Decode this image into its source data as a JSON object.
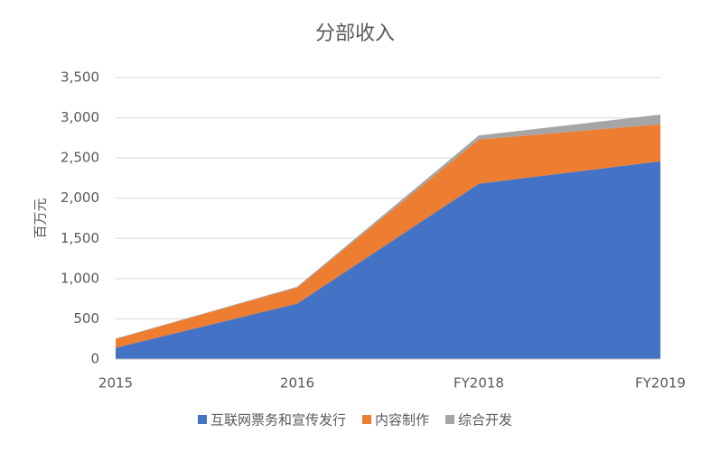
{
  "chart_data": {
    "type": "stacked_area",
    "title": "分部收入",
    "y_label": "百万元",
    "categories": [
      "2015",
      "2016",
      "FY2018",
      "FY2019"
    ],
    "series": [
      {
        "name": "互联网票务和宣传发行",
        "color": "#4472c4",
        "values": [
          140,
          690,
          2180,
          2460
        ]
      },
      {
        "name": "内容制作",
        "color": "#ed7d31",
        "values": [
          110,
          200,
          550,
          460
        ]
      },
      {
        "name": "综合开发",
        "color": "#a5a5a5",
        "values": [
          5,
          10,
          50,
          120
        ]
      }
    ],
    "ylim": [
      0,
      3500
    ],
    "yticks": [
      0,
      500,
      {
        "value": 1000,
        "label": "1,000"
      },
      {
        "value": 1500,
        "label": "1,500"
      },
      {
        "value": 2000,
        "label": "2,000"
      },
      {
        "value": 2500,
        "label": "2,500"
      },
      {
        "value": 3000,
        "label": "3,000"
      },
      {
        "value": 3500,
        "label": "3,500"
      }
    ],
    "grid": true,
    "legend": "bottom"
  }
}
